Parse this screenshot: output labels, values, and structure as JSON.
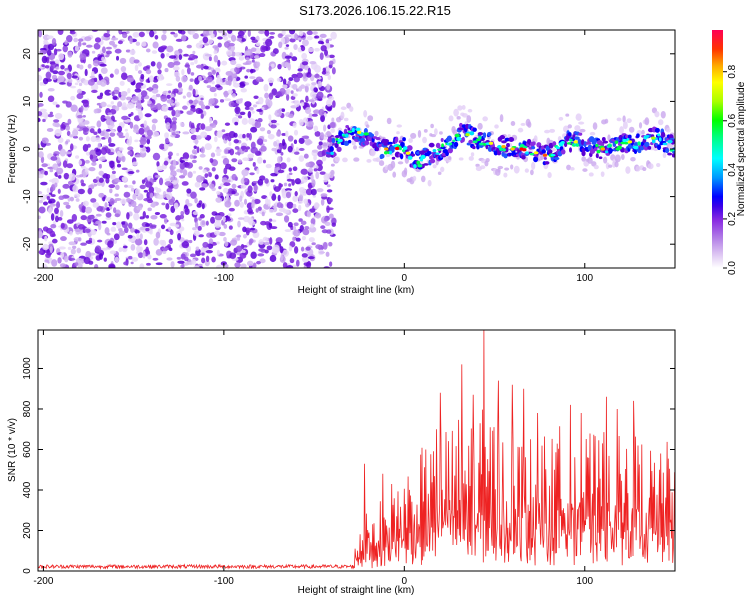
{
  "figure": {
    "title": "S173.2026.106.15.22.R15"
  },
  "chart_data": [
    {
      "type": "heatmap",
      "xlabel": "Height of straight line (km)",
      "ylabel": "Frequency (Hz)",
      "xlim": [
        -203,
        150
      ],
      "ylim": [
        -25,
        25
      ],
      "xticks": [
        -200,
        -100,
        0,
        100
      ],
      "yticks": [
        -20,
        -10,
        0,
        10,
        20
      ],
      "noise_region_x": [
        -203,
        -39
      ],
      "signal_ridge": {
        "x": [
          -40,
          -35,
          -30,
          -25,
          -20,
          -15,
          -10,
          -5,
          0,
          5,
          10,
          15,
          20,
          25,
          30,
          35,
          40,
          45,
          50,
          55,
          60,
          65,
          70,
          75,
          80,
          85,
          90,
          95,
          100,
          105,
          110,
          115,
          120,
          125,
          130,
          135,
          140,
          145,
          150
        ],
        "freq": [
          0,
          2.5,
          3.5,
          3.5,
          2,
          0.5,
          0,
          0,
          0.5,
          -3,
          -2.5,
          -1,
          0,
          1,
          3,
          3,
          2,
          1.5,
          1,
          0.5,
          0,
          0,
          -0.5,
          -1,
          -1.5,
          0,
          2,
          1.5,
          1,
          0,
          0,
          0.5,
          1,
          1.5,
          1,
          2,
          2.5,
          1.5,
          0
        ]
      },
      "colorbar": {
        "label": "Normalized spectral amplitude",
        "range": [
          0,
          0.97
        ],
        "ticks": [
          0.0,
          0.2,
          0.4,
          0.6,
          0.8
        ],
        "tick_labels": [
          "0.0",
          "0.2",
          "0.4",
          "0.6",
          "0.8"
        ],
        "colormap": [
          "#ffffff",
          "#dcc3f2",
          "#b07ae6",
          "#8a2be2",
          "#5a00d6",
          "#0000ff",
          "#0099ff",
          "#00ffff",
          "#00ff80",
          "#00ff00",
          "#aaff00",
          "#ffff00",
          "#ffaa00",
          "#ff5500",
          "#ff0000",
          "#ff0055"
        ]
      }
    },
    {
      "type": "line",
      "xlabel": "Height of straight line (km)",
      "ylabel": "SNR (10 * v/v)",
      "xlim": [
        -203,
        150
      ],
      "ylim": [
        0,
        1190
      ],
      "xticks": [
        -200,
        -100,
        0,
        100
      ],
      "yticks": [
        0,
        200,
        400,
        600,
        800,
        1000
      ],
      "color": "#ee2222",
      "series": [
        {
          "x_start": -203,
          "x_step": 0.35,
          "noise_floor_until_x": -28,
          "noise_floor_level": 22,
          "envelope_x": [
            -203,
            -30,
            -25,
            -20,
            -15,
            -10,
            -5,
            0,
            5,
            10,
            15,
            20,
            25,
            30,
            35,
            40,
            45,
            50,
            55,
            60,
            65,
            70,
            75,
            80,
            85,
            90,
            95,
            100,
            105,
            110,
            115,
            120,
            125,
            130,
            135,
            140,
            145,
            150
          ],
          "envelope_level": [
            22,
            40,
            140,
            220,
            190,
            240,
            280,
            300,
            330,
            360,
            380,
            400,
            430,
            460,
            470,
            460,
            480,
            470,
            440,
            420,
            400,
            400,
            390,
            400,
            420,
            450,
            430,
            410,
            400,
            420,
            410,
            390,
            420,
            400,
            380,
            370,
            390,
            360
          ],
          "peaks": [
            {
              "x": -22,
              "y": 530
            },
            {
              "x": -12,
              "y": 480
            },
            {
              "x": 12,
              "y": 600
            },
            {
              "x": 18,
              "y": 700
            },
            {
              "x": 20,
              "y": 880
            },
            {
              "x": 32,
              "y": 1020
            },
            {
              "x": 38,
              "y": 870
            },
            {
              "x": 44,
              "y": 1190
            },
            {
              "x": 52,
              "y": 940
            },
            {
              "x": 60,
              "y": 920
            },
            {
              "x": 66,
              "y": 900
            },
            {
              "x": 74,
              "y": 780
            },
            {
              "x": 92,
              "y": 820
            },
            {
              "x": 98,
              "y": 780
            },
            {
              "x": 112,
              "y": 860
            },
            {
              "x": 118,
              "y": 800
            },
            {
              "x": 127,
              "y": 840
            },
            {
              "x": 142,
              "y": 580
            }
          ]
        }
      ]
    }
  ]
}
